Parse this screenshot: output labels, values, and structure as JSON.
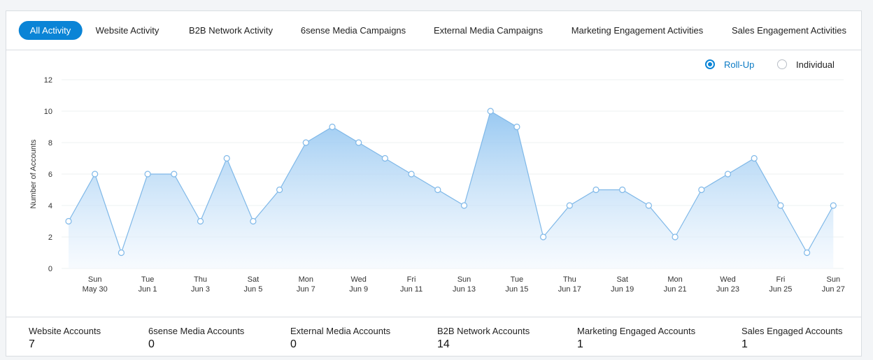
{
  "tabs": [
    {
      "label": "All Activity",
      "active": true
    },
    {
      "label": "Website Activity",
      "active": false
    },
    {
      "label": "B2B Network Activity",
      "active": false
    },
    {
      "label": "6sense Media Campaigns",
      "active": false
    },
    {
      "label": "External Media Campaigns",
      "active": false
    },
    {
      "label": "Marketing Engagement Activities",
      "active": false
    },
    {
      "label": "Sales Engagement Activities",
      "active": false
    }
  ],
  "view_toggle": {
    "rollup_label": "Roll-Up",
    "individual_label": "Individual",
    "selected": "rollup"
  },
  "chart_data": {
    "type": "area",
    "ylabel": "Number of Accounts",
    "ylim": [
      0,
      12
    ],
    "yticks": [
      0,
      2,
      4,
      6,
      8,
      10,
      12
    ],
    "grid": true,
    "x": [
      "May 29",
      "May 30",
      "May 31",
      "Jun 1",
      "Jun 2",
      "Jun 3",
      "Jun 4",
      "Jun 5",
      "Jun 6",
      "Jun 7",
      "Jun 8",
      "Jun 9",
      "Jun 10",
      "Jun 11",
      "Jun 12",
      "Jun 13",
      "Jun 14",
      "Jun 15",
      "Jun 16",
      "Jun 17",
      "Jun 18",
      "Jun 19",
      "Jun 20",
      "Jun 21",
      "Jun 22",
      "Jun 23",
      "Jun 24",
      "Jun 25",
      "Jun 26",
      "Jun 27"
    ],
    "values": [
      3,
      6,
      1,
      6,
      6,
      3,
      7,
      3,
      5,
      8,
      9,
      8,
      7,
      6,
      5,
      4,
      10,
      9,
      2,
      4,
      5,
      5,
      4,
      2,
      5,
      6,
      7,
      4,
      1,
      4
    ],
    "xtick_labels": [
      {
        "day": "Sun",
        "date": "May 30"
      },
      {
        "day": "Tue",
        "date": "Jun 1"
      },
      {
        "day": "Thu",
        "date": "Jun 3"
      },
      {
        "day": "Sat",
        "date": "Jun 5"
      },
      {
        "day": "Mon",
        "date": "Jun 7"
      },
      {
        "day": "Wed",
        "date": "Jun 9"
      },
      {
        "day": "Fri",
        "date": "Jun 11"
      },
      {
        "day": "Sun",
        "date": "Jun 13"
      },
      {
        "day": "Tue",
        "date": "Jun 15"
      },
      {
        "day": "Thu",
        "date": "Jun 17"
      },
      {
        "day": "Sat",
        "date": "Jun 19"
      },
      {
        "day": "Mon",
        "date": "Jun 21"
      },
      {
        "day": "Wed",
        "date": "Jun 23"
      },
      {
        "day": "Fri",
        "date": "Jun 25"
      },
      {
        "day": "Sun",
        "date": "Jun 27"
      }
    ],
    "colors": {
      "line": "#7fb8e8",
      "fill_top": "#8ec3f0",
      "fill_bottom": "#f2f8fe",
      "grid": "#eef0f2"
    }
  },
  "stats": [
    {
      "label": "Website Accounts",
      "value": "7"
    },
    {
      "label": "6sense Media Accounts",
      "value": "0"
    },
    {
      "label": "External Media Accounts",
      "value": "0"
    },
    {
      "label": "B2B Network Accounts",
      "value": "14"
    },
    {
      "label": "Marketing Engaged Accounts",
      "value": "1"
    },
    {
      "label": "Sales Engaged Accounts",
      "value": "1"
    }
  ]
}
